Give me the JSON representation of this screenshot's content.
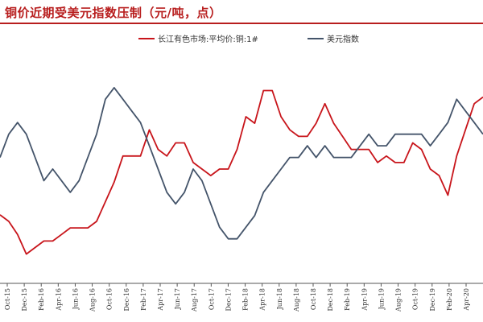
{
  "page": {
    "title": "铜价近期受美元指数压制（元/吨，点）",
    "accent_color": "#b81e1e"
  },
  "chart_data": {
    "type": "line",
    "title": "铜价近期受美元指数压制（元/吨，点）",
    "xlabel": "",
    "ylabel": "",
    "x_start": "2015-09",
    "x_end": "2020-06",
    "x_tick_labels": [
      "Oct-15",
      "Dec-15",
      "Feb-16",
      "Apr-16",
      "Jun-16",
      "Aug-16",
      "Oct-16",
      "Dec-16",
      "Feb-17",
      "Apr-17",
      "Jun-17",
      "Aug-17",
      "Oct-17",
      "Dec-17",
      "Feb-18",
      "Apr-18",
      "Jun-18",
      "Aug-18",
      "Oct-18",
      "Dec-18",
      "Feb-19",
      "Apr-19",
      "Jun-19",
      "Aug-19",
      "Oct-19",
      "Dec-19",
      "Feb-20",
      "Apr-20"
    ],
    "grid": false,
    "legend_position": "top-center",
    "series": [
      {
        "name": "长江有色市场:平均价:铜:1#",
        "color": "#c8151b",
        "values": [
          39,
          38,
          36,
          33,
          34,
          35,
          35,
          36,
          37,
          37,
          37,
          38,
          41,
          44,
          48,
          48,
          48,
          52,
          49,
          48,
          50,
          50,
          47,
          46,
          45,
          46,
          46,
          49,
          54,
          53,
          58,
          58,
          54,
          52,
          51,
          51,
          53,
          56,
          53,
          51,
          49,
          49,
          49,
          47,
          48,
          47,
          47,
          50,
          49,
          46,
          45,
          42,
          48,
          52,
          56,
          57
        ]
      },
      {
        "name": "美元指数",
        "color": "#44546a",
        "values": [
          96.0,
          98.0,
          99.0,
          98.0,
          96.0,
          94.0,
          95.0,
          94.0,
          93.0,
          94.0,
          96.0,
          98.0,
          101.0,
          102.0,
          101.0,
          100.0,
          99.0,
          97.0,
          95.0,
          93.0,
          92.0,
          93.0,
          95.0,
          94.0,
          92.0,
          90.0,
          89.0,
          89.0,
          90.0,
          91.0,
          93.0,
          94.0,
          95.0,
          96.0,
          96.0,
          97.0,
          96.0,
          97.0,
          96.0,
          96.0,
          96.0,
          97.0,
          98.0,
          97.0,
          97.0,
          98.0,
          98.0,
          98.0,
          98.0,
          97.0,
          98.0,
          99.0,
          101.0,
          100.0,
          99.0,
          98.0
        ]
      }
    ],
    "left_range": [
      30,
      62
    ],
    "right_range": [
      86,
      104
    ]
  }
}
